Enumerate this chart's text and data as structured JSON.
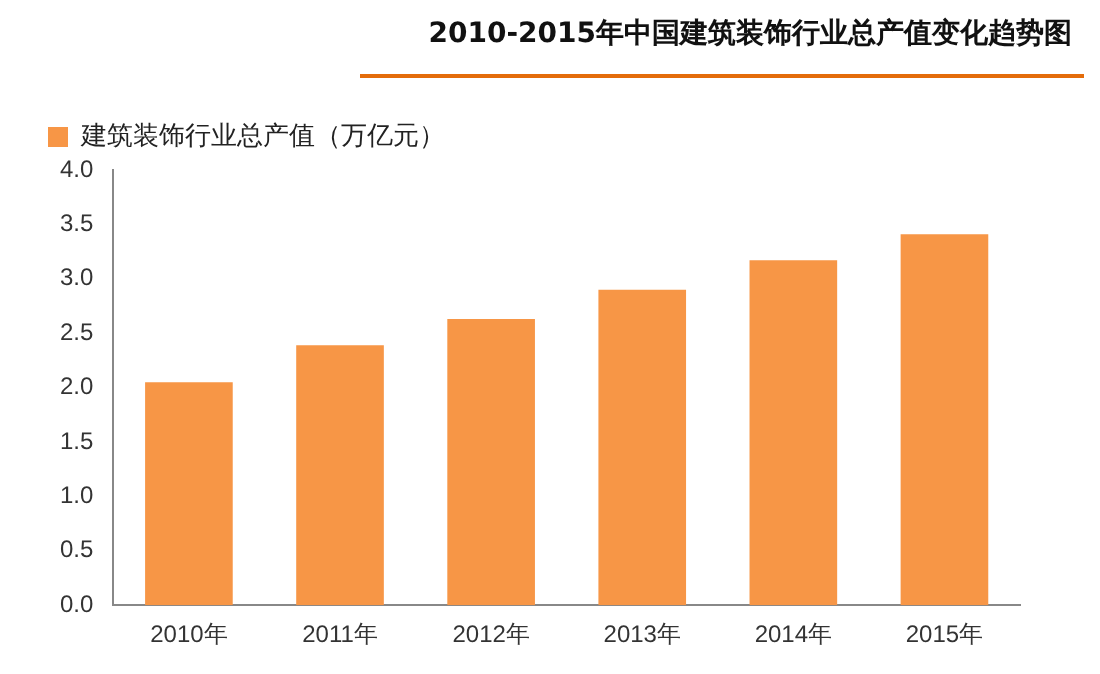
{
  "chart_data": {
    "type": "bar",
    "title": "2010-2015年中国建筑装饰行业总产值变化趋势图",
    "categories": [
      "2010年",
      "2011年",
      "2012年",
      "2013年",
      "2014年",
      "2015年"
    ],
    "series": [
      {
        "name": "建筑装饰行业总产值（万亿元）",
        "color": "#f79646",
        "values": [
          2.05,
          2.39,
          2.63,
          2.9,
          3.17,
          3.41
        ]
      }
    ],
    "ylim": [
      0,
      4
    ],
    "yticks": [
      {
        "value": 0,
        "label": "0.0"
      },
      0.5,
      {
        "value": 1,
        "label": "1.0"
      },
      1.5,
      {
        "value": 2,
        "label": "2.0"
      },
      2.5,
      {
        "value": 3,
        "label": "3.0"
      },
      3.5,
      {
        "value": 4,
        "label": "4.0"
      }
    ],
    "grid": false,
    "legend": "top left"
  }
}
